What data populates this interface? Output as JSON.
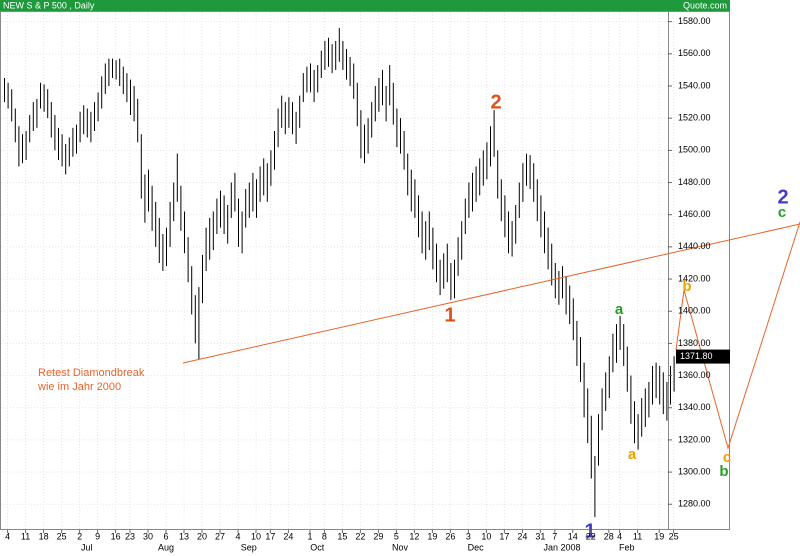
{
  "chart_data": {
    "type": "ohlc",
    "title": "NEW S & P 500 , Daily",
    "source": "Quote.com",
    "color": "#000000",
    "ylim": [
      1264,
      1586
    ],
    "yticks": [
      {
        "value": 1280,
        "label": "1280.00"
      },
      {
        "value": 1300,
        "label": "1300.00"
      },
      {
        "value": 1320,
        "label": "1320.00"
      },
      {
        "value": 1340,
        "label": "1340.00"
      },
      {
        "value": 1360,
        "label": "1360.00"
      },
      {
        "value": 1380,
        "label": "1380.00"
      },
      {
        "value": 1400,
        "label": "1400.00"
      },
      {
        "value": 1420,
        "label": "1420.00"
      },
      {
        "value": 1440,
        "label": "1440.00"
      },
      {
        "value": 1460,
        "label": "1460.00"
      },
      {
        "value": 1480,
        "label": "1480.00"
      },
      {
        "value": 1500,
        "label": "1500.00"
      },
      {
        "value": 1520,
        "label": "1520.00"
      },
      {
        "value": 1540,
        "label": "1540.00"
      },
      {
        "value": 1560,
        "label": "1560.00"
      },
      {
        "value": 1580,
        "label": "1580.00"
      }
    ],
    "xticks": [
      {
        "value": 1,
        "label": "4"
      },
      {
        "value": 6,
        "label": "11"
      },
      {
        "value": 11,
        "label": "18"
      },
      {
        "value": 16,
        "label": "25"
      },
      {
        "value": 21,
        "label": "2"
      },
      {
        "value": 26,
        "label": "9"
      },
      {
        "value": 31,
        "label": "16"
      },
      {
        "value": 35,
        "label": "23"
      },
      {
        "value": 40,
        "label": "30"
      },
      {
        "value": 45,
        "label": "6"
      },
      {
        "value": 50,
        "label": "13"
      },
      {
        "value": 55,
        "label": "20"
      },
      {
        "value": 60,
        "label": "27"
      },
      {
        "value": 65,
        "label": "4"
      },
      {
        "value": 70,
        "label": "10"
      },
      {
        "value": 74,
        "label": "17"
      },
      {
        "value": 79,
        "label": "24"
      },
      {
        "value": 85,
        "label": "1"
      },
      {
        "value": 89,
        "label": "8"
      },
      {
        "value": 94,
        "label": "15"
      },
      {
        "value": 99,
        "label": "22"
      },
      {
        "value": 104,
        "label": "29"
      },
      {
        "value": 109,
        "label": "5"
      },
      {
        "value": 114,
        "label": "12"
      },
      {
        "value": 119,
        "label": "19"
      },
      {
        "value": 124,
        "label": "26"
      },
      {
        "value": 129,
        "label": "3"
      },
      {
        "value": 134,
        "label": "10"
      },
      {
        "value": 139,
        "label": "17"
      },
      {
        "value": 144,
        "label": "24"
      },
      {
        "value": 149,
        "label": "31"
      },
      {
        "value": 153,
        "label": "7"
      },
      {
        "value": 158,
        "label": "14"
      },
      {
        "value": 163,
        "label": "22"
      },
      {
        "value": 168,
        "label": "28"
      },
      {
        "value": 171,
        "label": "4"
      },
      {
        "value": 176,
        "label": "11"
      },
      {
        "value": 182,
        "label": "19"
      },
      {
        "value": 186,
        "label": "25"
      }
    ],
    "month_labels": [
      {
        "value": 23,
        "label": "Jul"
      },
      {
        "value": 45,
        "label": "Aug"
      },
      {
        "value": 68,
        "label": "Sep"
      },
      {
        "value": 87,
        "label": "Oct"
      },
      {
        "value": 110,
        "label": "Nov"
      },
      {
        "value": 131,
        "label": "Dec"
      },
      {
        "value": 155,
        "label": "Jan 2008"
      },
      {
        "value": 173,
        "label": "Feb"
      }
    ],
    "grid": true,
    "last_price": {
      "value": 1371.8,
      "label": "1371.80"
    },
    "high": [
      1545,
      1542,
      1538,
      1526,
      1515,
      1510,
      1512,
      1522,
      1530,
      1532,
      1542,
      1541,
      1538,
      1530,
      1522,
      1514,
      1510,
      1504,
      1508,
      1514,
      1516,
      1524,
      1528,
      1526,
      1524,
      1530,
      1536,
      1546,
      1554,
      1557,
      1557,
      1556,
      1557,
      1552,
      1548,
      1544,
      1540,
      1532,
      1510,
      1485,
      1488,
      1478,
      1468,
      1458,
      1448,
      1452,
      1468,
      1480,
      1498,
      1478,
      1462,
      1446,
      1428,
      1410,
      1415,
      1435,
      1452,
      1458,
      1462,
      1470,
      1475,
      1472,
      1466,
      1480,
      1486,
      1470,
      1462,
      1476,
      1480,
      1486,
      1482,
      1490,
      1495,
      1492,
      1500,
      1512,
      1526,
      1534,
      1530,
      1533,
      1530,
      1524,
      1534,
      1548,
      1552,
      1554,
      1550,
      1553,
      1562,
      1568,
      1570,
      1566,
      1568,
      1576,
      1568,
      1563,
      1558,
      1554,
      1542,
      1525,
      1516,
      1520,
      1530,
      1540,
      1545,
      1550,
      1540,
      1553,
      1542,
      1526,
      1520,
      1512,
      1498,
      1488,
      1482,
      1472,
      1462,
      1456,
      1462,
      1452,
      1442,
      1432,
      1436,
      1442,
      1430,
      1432,
      1446,
      1456,
      1470,
      1480,
      1486,
      1490,
      1495,
      1500,
      1505,
      1515,
      1525,
      1500,
      1482,
      1472,
      1462,
      1456,
      1466,
      1480,
      1492,
      1498,
      1497,
      1492,
      1482,
      1472,
      1462,
      1452,
      1442,
      1430,
      1425,
      1428,
      1422,
      1416,
      1408,
      1394,
      1384,
      1368,
      1352,
      1335,
      1310,
      1336,
      1352,
      1362,
      1372,
      1386,
      1392,
      1397,
      1392,
      1378,
      1360,
      1344,
      1336,
      1346,
      1352,
      1356,
      1366,
      1368,
      1366,
      1362,
      1356,
      1366,
      1372
    ],
    "low": [
      1530,
      1526,
      1518,
      1505,
      1490,
      1492,
      1494,
      1505,
      1512,
      1514,
      1526,
      1524,
      1520,
      1508,
      1500,
      1494,
      1490,
      1485,
      1490,
      1496,
      1498,
      1505,
      1510,
      1508,
      1505,
      1512,
      1518,
      1526,
      1535,
      1540,
      1545,
      1544,
      1540,
      1535,
      1530,
      1522,
      1518,
      1505,
      1470,
      1455,
      1462,
      1450,
      1440,
      1430,
      1425,
      1428,
      1440,
      1456,
      1468,
      1450,
      1436,
      1418,
      1398,
      1380,
      1370,
      1405,
      1425,
      1432,
      1438,
      1448,
      1452,
      1448,
      1442,
      1458,
      1462,
      1440,
      1436,
      1452,
      1458,
      1462,
      1458,
      1468,
      1472,
      1468,
      1478,
      1488,
      1502,
      1514,
      1510,
      1514,
      1510,
      1504,
      1514,
      1530,
      1536,
      1536,
      1530,
      1536,
      1545,
      1550,
      1552,
      1548,
      1550,
      1555,
      1550,
      1544,
      1540,
      1532,
      1515,
      1495,
      1492,
      1498,
      1508,
      1518,
      1524,
      1528,
      1518,
      1528,
      1516,
      1502,
      1498,
      1488,
      1472,
      1462,
      1458,
      1446,
      1436,
      1432,
      1438,
      1426,
      1418,
      1410,
      1414,
      1418,
      1407,
      1408,
      1422,
      1432,
      1448,
      1458,
      1462,
      1468,
      1472,
      1478,
      1482,
      1490,
      1496,
      1470,
      1456,
      1446,
      1436,
      1434,
      1442,
      1458,
      1468,
      1478,
      1476,
      1468,
      1456,
      1446,
      1436,
      1426,
      1416,
      1408,
      1404,
      1408,
      1398,
      1392,
      1382,
      1366,
      1356,
      1334,
      1318,
      1296,
      1272,
      1304,
      1326,
      1338,
      1346,
      1362,
      1368,
      1376,
      1366,
      1350,
      1330,
      1318,
      1314,
      1322,
      1328,
      1334,
      1342,
      1346,
      1342,
      1336,
      1332,
      1342,
      1350
    ],
    "annotations": [
      "2",
      "1",
      "a",
      "b",
      "a",
      "c",
      "b",
      "2",
      "c",
      "1",
      "Retest Diamondbreak",
      "wie im Jahr 2000"
    ]
  }
}
